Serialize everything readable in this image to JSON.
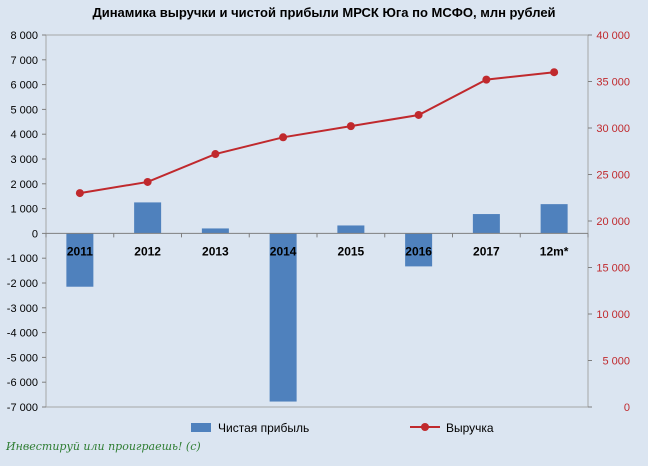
{
  "chart_data": {
    "type": "bar+line",
    "title": "Динамика выручки и чистой прибыли МРСК Юга по МСФО, млн рублей",
    "categories": [
      "2011",
      "2012",
      "2013",
      "2014",
      "2015",
      "2016",
      "2017",
      "12m*"
    ],
    "series": [
      {
        "name": "Чистая прибыль",
        "type": "bar",
        "axis": "left",
        "color": "#4f81bd",
        "values": [
          -2150,
          1250,
          200,
          -6780,
          320,
          -1330,
          780,
          1180
        ]
      },
      {
        "name": "Выручка",
        "type": "line",
        "axis": "right",
        "color": "#c0292d",
        "values": [
          23000,
          24200,
          27200,
          29000,
          30200,
          31400,
          35200,
          36000
        ]
      }
    ],
    "y_left": {
      "min": -7000,
      "max": 8000,
      "step": 1000,
      "tick_labels": [
        "-7 000",
        "-6 000",
        "-5 000",
        "-4 000",
        "-3 000",
        "-2 000",
        "-1 000",
        "0",
        "1 000",
        "2 000",
        "3 000",
        "4 000",
        "5 000",
        "6 000",
        "7 000",
        "8 000"
      ]
    },
    "y_right": {
      "min": 0,
      "max": 40000,
      "step": 5000,
      "tick_labels": [
        "0",
        "5 000",
        "10 000",
        "15 000",
        "20 000",
        "25 000",
        "30 000",
        "35 000",
        "40 000"
      ]
    },
    "legend_position": "bottom",
    "grid": false
  },
  "watermark": "Инвестируй или проиграешь! (с)"
}
